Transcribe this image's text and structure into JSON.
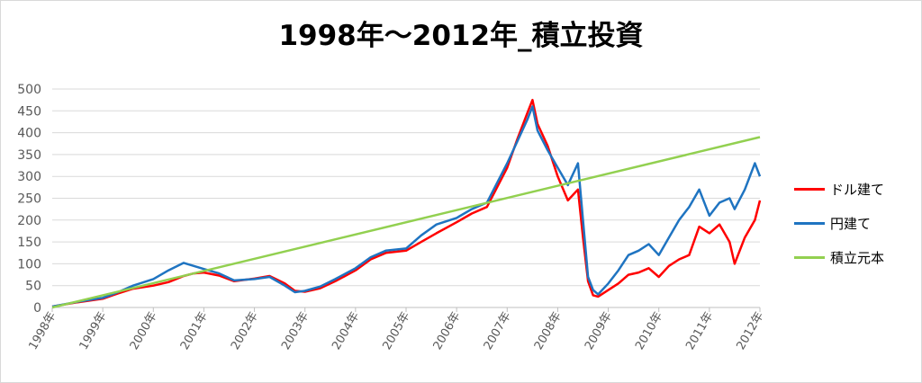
{
  "chart_data": {
    "type": "line",
    "title": "1998年～2012年_積立投資",
    "xlabel": "",
    "ylabel": "",
    "ylim": [
      0,
      500
    ],
    "yticks": [
      0,
      50,
      100,
      150,
      200,
      250,
      300,
      350,
      400,
      450,
      500
    ],
    "xlim": [
      1998,
      2012
    ],
    "xticks": [
      "1998年",
      "1999年",
      "2000年",
      "2001年",
      "2002年",
      "2003年",
      "2004年",
      "2005年",
      "2006年",
      "2007年",
      "2008年",
      "2009年",
      "2010年",
      "2011年",
      "2012年"
    ],
    "grid": true,
    "legend_position": "right",
    "series": [
      {
        "name": "ドル建て",
        "color": "#ff0000",
        "x": [
          1998.0,
          1998.5,
          1999.0,
          1999.3,
          1999.6,
          2000.0,
          2000.3,
          2000.6,
          2000.8,
          2001.0,
          2001.3,
          2001.6,
          2002.0,
          2002.3,
          2002.6,
          2002.8,
          2003.0,
          2003.3,
          2003.6,
          2004.0,
          2004.3,
          2004.6,
          2005.0,
          2005.3,
          2005.6,
          2006.0,
          2006.3,
          2006.6,
          2007.0,
          2007.2,
          2007.4,
          2007.5,
          2007.6,
          2007.8,
          2008.0,
          2008.2,
          2008.4,
          2008.5,
          2008.6,
          2008.7,
          2008.8,
          2009.0,
          2009.2,
          2009.4,
          2009.6,
          2009.8,
          2010.0,
          2010.2,
          2010.4,
          2010.6,
          2010.8,
          2011.0,
          2011.2,
          2011.4,
          2011.5,
          2011.7,
          2011.9,
          2012.0
        ],
        "values": [
          2,
          12,
          20,
          32,
          43,
          50,
          58,
          72,
          78,
          80,
          73,
          60,
          66,
          72,
          55,
          38,
          36,
          44,
          60,
          85,
          110,
          125,
          130,
          150,
          170,
          195,
          215,
          230,
          320,
          385,
          445,
          475,
          420,
          370,
          300,
          245,
          270,
          160,
          60,
          28,
          25,
          40,
          55,
          75,
          80,
          90,
          70,
          95,
          110,
          120,
          185,
          170,
          190,
          150,
          100,
          160,
          200,
          245
        ]
      },
      {
        "name": "円建て",
        "color": "#1f74c1",
        "x": [
          1998.0,
          1998.5,
          1999.0,
          1999.3,
          1999.6,
          2000.0,
          2000.3,
          2000.6,
          2000.8,
          2001.0,
          2001.3,
          2001.6,
          2002.0,
          2002.3,
          2002.6,
          2002.8,
          2003.0,
          2003.3,
          2003.6,
          2004.0,
          2004.3,
          2004.6,
          2005.0,
          2005.3,
          2005.6,
          2006.0,
          2006.3,
          2006.6,
          2007.0,
          2007.2,
          2007.4,
          2007.5,
          2007.6,
          2007.8,
          2008.0,
          2008.2,
          2008.4,
          2008.5,
          2008.6,
          2008.7,
          2008.8,
          2009.0,
          2009.2,
          2009.4,
          2009.6,
          2009.8,
          2010.0,
          2010.2,
          2010.4,
          2010.6,
          2010.8,
          2011.0,
          2011.2,
          2011.4,
          2011.5,
          2011.7,
          2011.9,
          2012.0
        ],
        "values": [
          2,
          13,
          22,
          35,
          50,
          65,
          85,
          102,
          95,
          88,
          78,
          62,
          65,
          70,
          50,
          35,
          38,
          48,
          65,
          90,
          115,
          130,
          135,
          165,
          190,
          205,
          225,
          240,
          330,
          380,
          430,
          460,
          405,
          360,
          320,
          280,
          330,
          200,
          70,
          40,
          30,
          55,
          85,
          120,
          130,
          145,
          120,
          160,
          200,
          230,
          270,
          210,
          240,
          250,
          225,
          270,
          330,
          300
        ]
      },
      {
        "name": "積立元本",
        "color": "#92d050",
        "x": [
          1998.0,
          2012.0
        ],
        "values": [
          0,
          390
        ]
      }
    ]
  }
}
